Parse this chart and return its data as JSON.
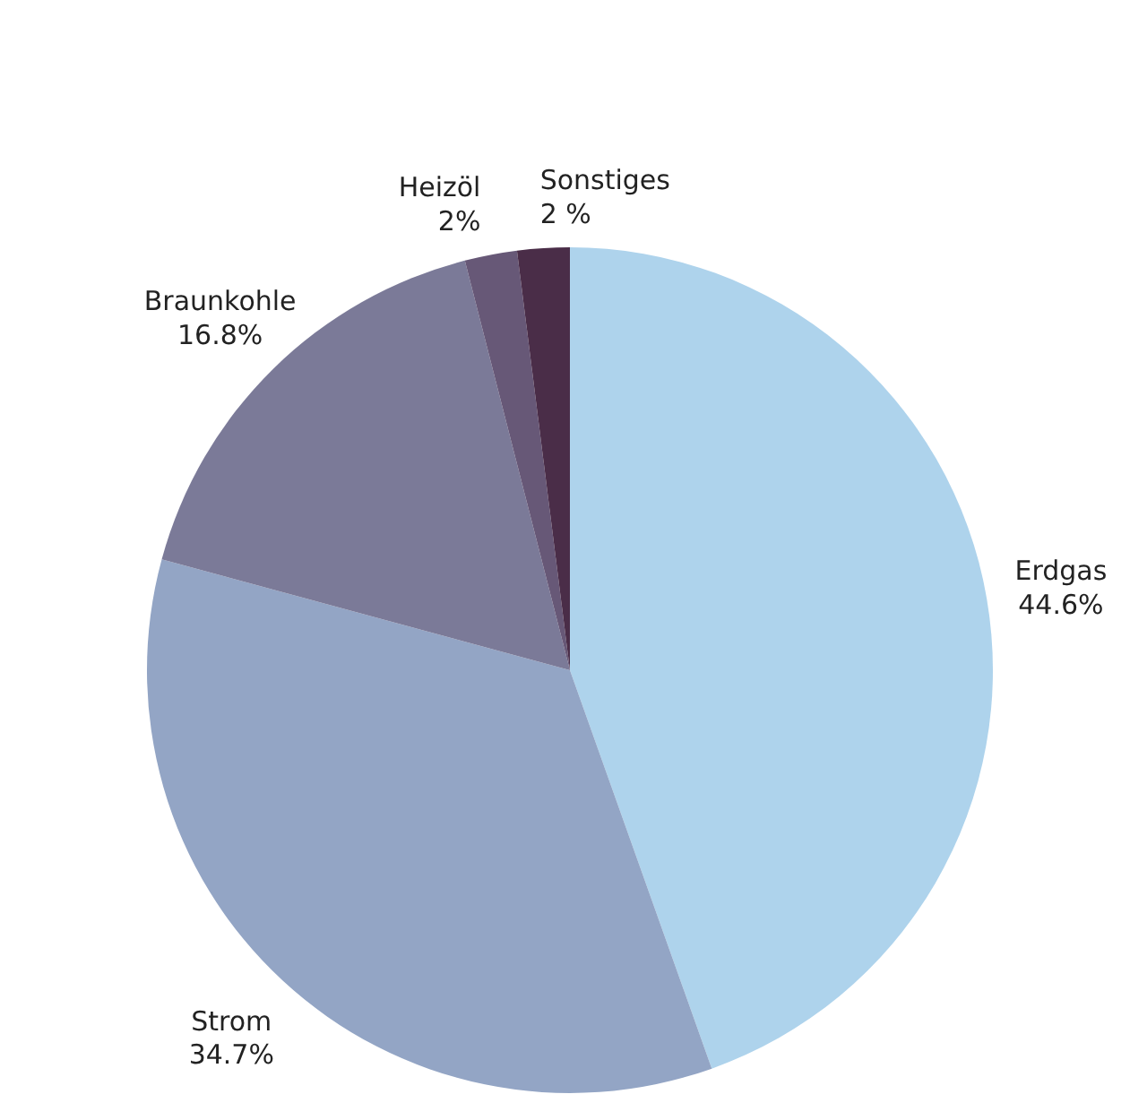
{
  "chart_data": {
    "type": "pie",
    "categories": [
      "Erdgas",
      "Strom",
      "Braunkohle",
      "Heizöl",
      "Sonstiges"
    ],
    "values": [
      44.6,
      34.7,
      16.8,
      2,
      2
    ],
    "value_labels": [
      "44.6%",
      "34.7%",
      "16.8%",
      "2%",
      "2 %"
    ],
    "colors": [
      "#aed3ec",
      "#93a5c5",
      "#7b7a98",
      "#675877",
      "#4a2d48"
    ]
  }
}
